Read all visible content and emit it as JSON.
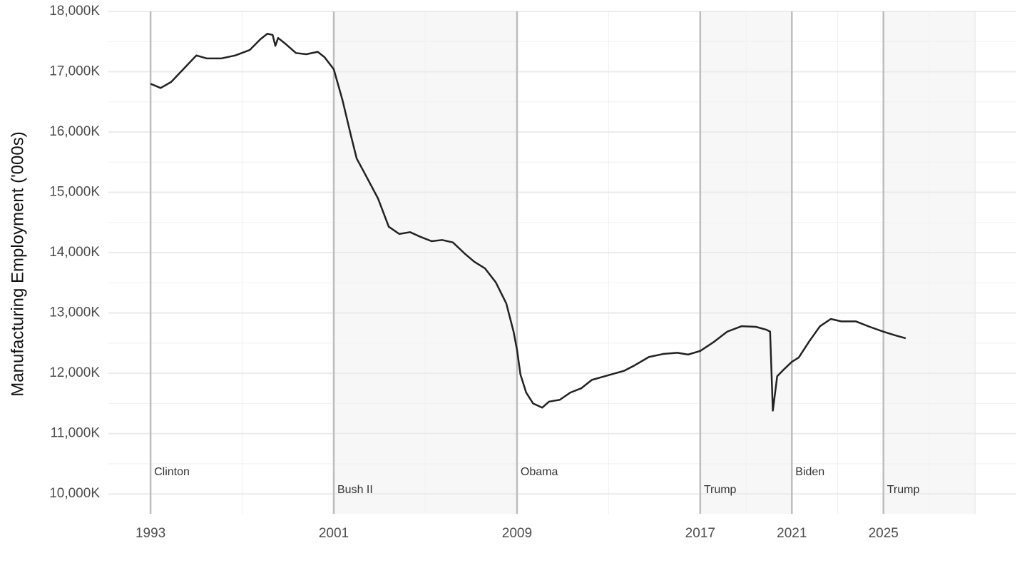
{
  "chart_data": {
    "type": "line",
    "y_label": "Manufacturing Employment ('000s)",
    "x": [
      1993.0,
      1993.44,
      1993.9,
      1994.5,
      1995.0,
      1995.46,
      1996.08,
      1996.7,
      1997.33,
      1997.8,
      1998.1,
      1998.33,
      1998.45,
      1998.57,
      1998.9,
      1999.35,
      1999.8,
      2000.3,
      2000.6,
      2001.0,
      2001.38,
      2001.75,
      2002.0,
      2002.3,
      2002.93,
      2003.4,
      2003.86,
      2004.33,
      2004.8,
      2005.27,
      2005.73,
      2006.2,
      2006.7,
      2007.13,
      2007.6,
      2008.07,
      2008.53,
      2008.85,
      2009.0,
      2009.15,
      2009.4,
      2009.7,
      2010.1,
      2010.4,
      2010.87,
      2011.33,
      2011.8,
      2012.27,
      2012.73,
      2013.2,
      2013.67,
      2014.13,
      2014.76,
      2015.38,
      2016.0,
      2016.47,
      2017.0,
      2017.56,
      2018.18,
      2018.8,
      2019.43,
      2019.9,
      2020.05,
      2020.17,
      2020.36,
      2020.67,
      2021.0,
      2021.3,
      2021.76,
      2022.23,
      2022.7,
      2023.16,
      2023.8,
      2024.4,
      2025.0,
      2025.5,
      2025.97
    ],
    "series": [
      {
        "color": "#222222",
        "values": [
          16800,
          16730,
          16830,
          17070,
          17270,
          17220,
          17220,
          17270,
          17360,
          17540,
          17630,
          17610,
          17430,
          17560,
          17460,
          17310,
          17290,
          17330,
          17240,
          17040,
          16530,
          15940,
          15560,
          15350,
          14900,
          14430,
          14310,
          14340,
          14260,
          14190,
          14210,
          14170,
          13990,
          13850,
          13740,
          13510,
          13160,
          12690,
          12390,
          11980,
          11680,
          11500,
          11430,
          11530,
          11560,
          11680,
          11750,
          11890,
          11940,
          11990,
          12040,
          12130,
          12270,
          12320,
          12340,
          12310,
          12370,
          12510,
          12690,
          12780,
          12770,
          12720,
          12690,
          11380,
          11950,
          12070,
          12190,
          12260,
          12530,
          12780,
          12900,
          12860,
          12860,
          12770,
          12690,
          12630,
          12580
        ]
      }
    ],
    "terms": [
      {
        "name": "Clinton",
        "start": 1993,
        "end": 2001,
        "shaded": false
      },
      {
        "name": "Bush II",
        "start": 2001,
        "end": 2009,
        "shaded": true
      },
      {
        "name": "Obama",
        "start": 2009,
        "end": 2017,
        "shaded": false
      },
      {
        "name": "Trump",
        "start": 2017,
        "end": 2021,
        "shaded": true
      },
      {
        "name": "Biden",
        "start": 2021,
        "end": 2025,
        "shaded": false
      },
      {
        "name": "Trump",
        "start": 2025,
        "end": 2029,
        "shaded": true
      }
    ],
    "xlim": [
      1991.16,
      2030.8
    ],
    "xticks": [
      1993,
      2001,
      2009,
      2017,
      2021,
      2025
    ],
    "ylim": [
      9670,
      18000
    ],
    "yticks": [
      {
        "value": 10000,
        "label": "10,000K"
      },
      {
        "value": 11000,
        "label": "11,000K"
      },
      {
        "value": 12000,
        "label": "12,000K"
      },
      {
        "value": 13000,
        "label": "13,000K"
      },
      {
        "value": 14000,
        "label": "14,000K"
      },
      {
        "value": 15000,
        "label": "15,000K"
      },
      {
        "value": 16000,
        "label": "16,000K"
      },
      {
        "value": 17000,
        "label": "17,000K"
      },
      {
        "value": 18000,
        "label": "18,000K"
      }
    ],
    "grid": true
  }
}
